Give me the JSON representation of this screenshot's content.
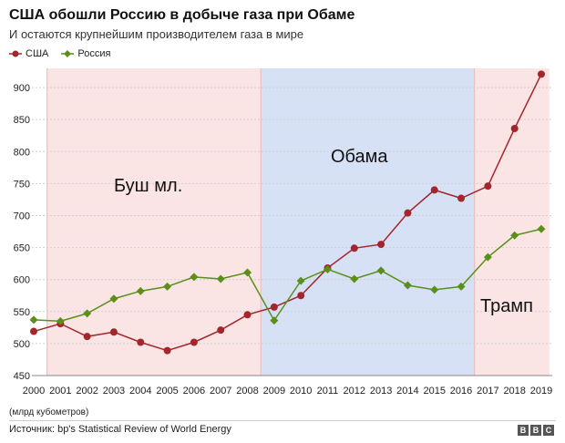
{
  "header": {
    "title": "США обошли Россию в добыче газа при Обаме",
    "subtitle": "И остаются крупнейшим производителем газа в мире"
  },
  "colors": {
    "usa": "#a3262d",
    "russia": "#5a8f1a",
    "period_red": "#fbe4e4",
    "period_blue": "#d7e1f5",
    "gridline": "#cccccc"
  },
  "footer": {
    "unit_note": "(млрд кубометров)",
    "source": "Источник: bp's Statistical Review of World Energy",
    "logo": [
      "B",
      "B",
      "C"
    ]
  },
  "chart_data": {
    "type": "line",
    "title": "США обошли Россию в добыче газа при Обаме",
    "subtitle": "И остаются крупнейшим производителем газа в мире",
    "x": [
      2000,
      2001,
      2002,
      2003,
      2004,
      2005,
      2006,
      2007,
      2008,
      2009,
      2010,
      2011,
      2012,
      2013,
      2014,
      2015,
      2016,
      2017,
      2018,
      2019
    ],
    "ylim": [
      450,
      930
    ],
    "yticks": [
      450,
      500,
      550,
      600,
      650,
      700,
      750,
      800,
      850,
      900
    ],
    "grid": true,
    "legend_position": "top-left",
    "series": [
      {
        "name": "США",
        "color": "#a3262d",
        "marker": "circle",
        "values": [
          519,
          531,
          511,
          518,
          502,
          489,
          502,
          521,
          545,
          557,
          575,
          618,
          649,
          655,
          704,
          740,
          727,
          746,
          836,
          921
        ]
      },
      {
        "name": "Россия",
        "color": "#5a8f1a",
        "marker": "diamond",
        "values": [
          537,
          535,
          547,
          570,
          582,
          589,
          604,
          601,
          611,
          536,
          598,
          616,
          601,
          614,
          591,
          584,
          589,
          635,
          669,
          679
        ]
      }
    ],
    "periods": [
      {
        "label": "Буш мл.",
        "start": 2000.5,
        "end": 2008.5,
        "color": "#fbe4e4"
      },
      {
        "label": "Обама",
        "start": 2008.5,
        "end": 2016.5,
        "color": "#d7e1f5"
      },
      {
        "label": "Трамп",
        "start": 2016.5,
        "end": 2019.3,
        "color": "#fbe4e4"
      }
    ]
  }
}
